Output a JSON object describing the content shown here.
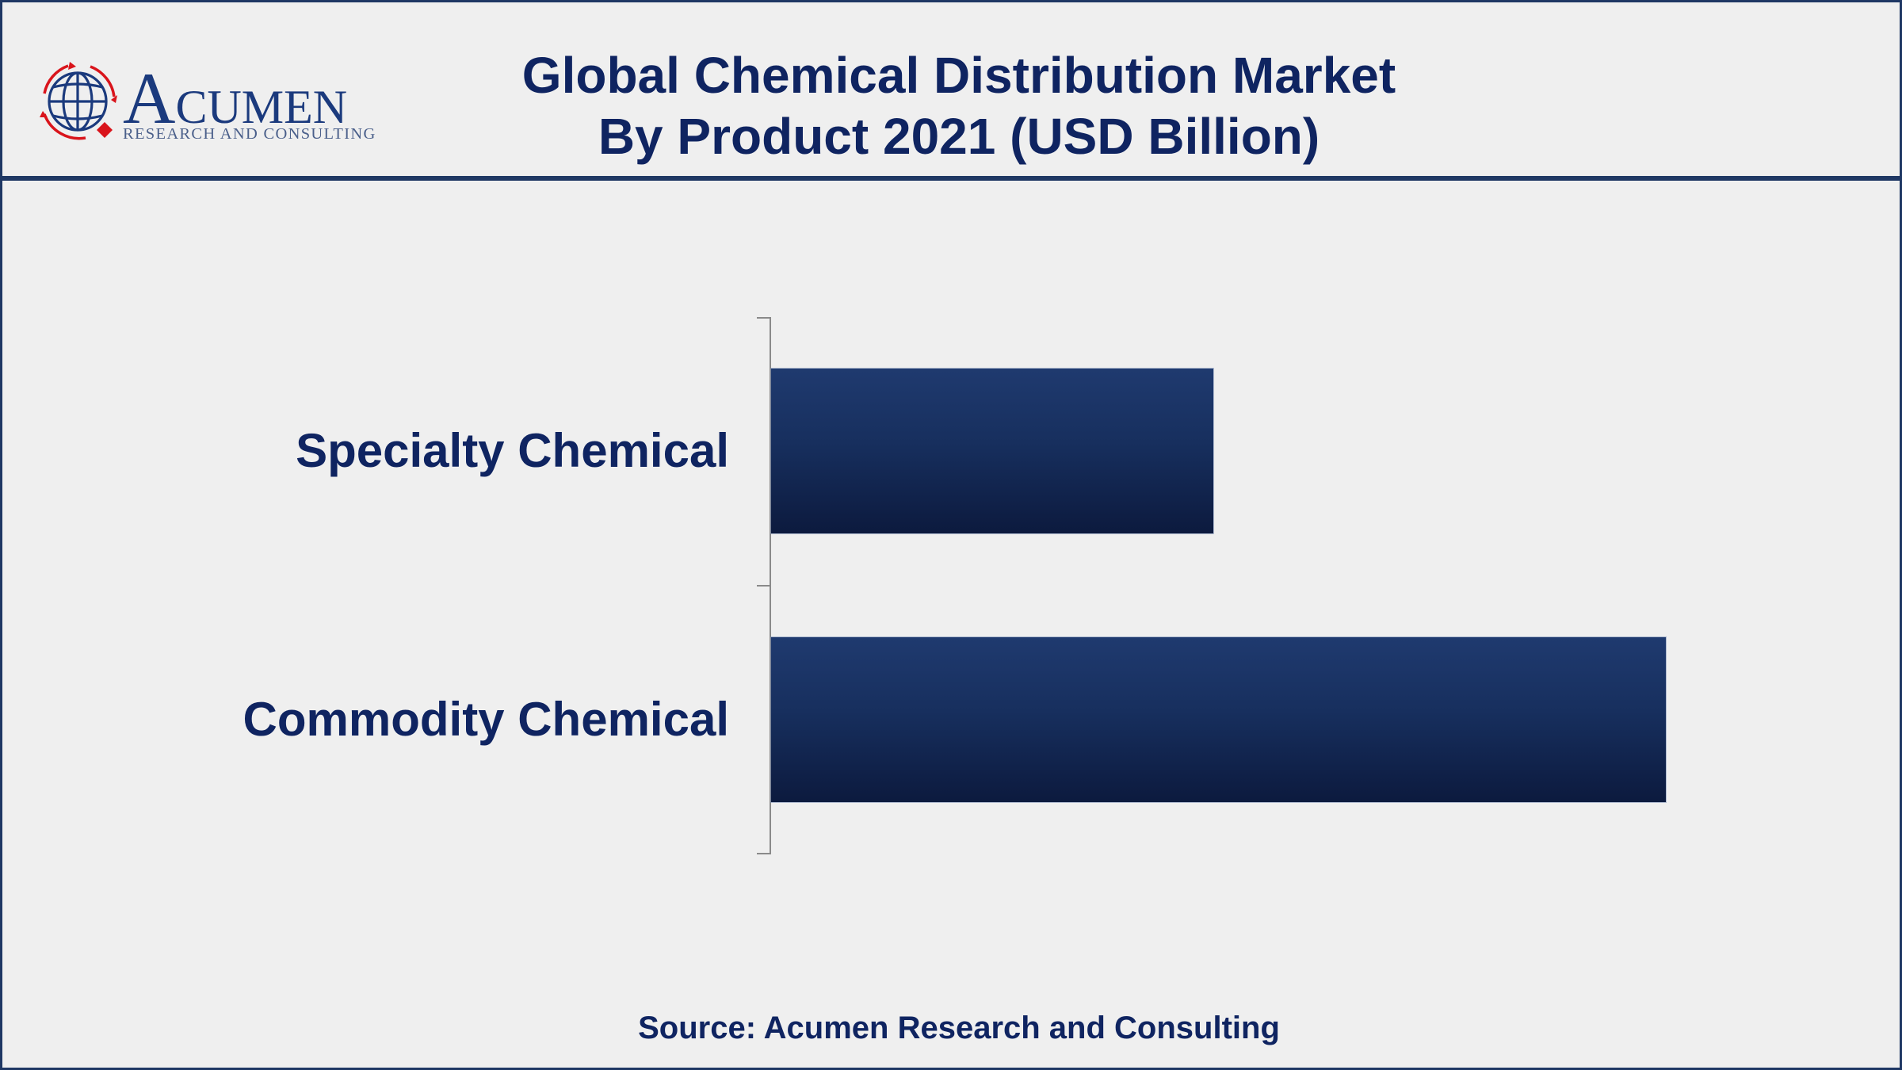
{
  "header": {
    "logo": {
      "name_initial": "A",
      "name_rest": "CUMEN",
      "tagline": "RESEARCH AND CONSULTING",
      "colors": {
        "primary": "#1b3a7d",
        "accent": "#d9141b"
      }
    },
    "title_line1": "Global Chemical Distribution Market",
    "title_line2": "By Product 2021 (USD Billion)"
  },
  "footer": {
    "source": "Source: Acumen Research and Consulting"
  },
  "colors": {
    "frame": "#1f3864",
    "background": "#efefef",
    "text": "#0f2461",
    "bar_top": "#1f3a6f",
    "bar_bottom": "#0c1a3e",
    "axis": "#8a8a8a"
  },
  "chart_data": {
    "type": "bar",
    "orientation": "horizontal",
    "title": "Global Chemical Distribution Market By Product 2021 (USD Billion)",
    "categories": [
      "Specialty Chemical",
      "Commodity Chemical"
    ],
    "values": [
      49.4,
      100
    ],
    "value_note": "relative bar lengths (Commodity Chemical = 100); no value axis or data labels shown",
    "xlabel": "",
    "ylabel": "",
    "grid": false,
    "legend": null
  }
}
